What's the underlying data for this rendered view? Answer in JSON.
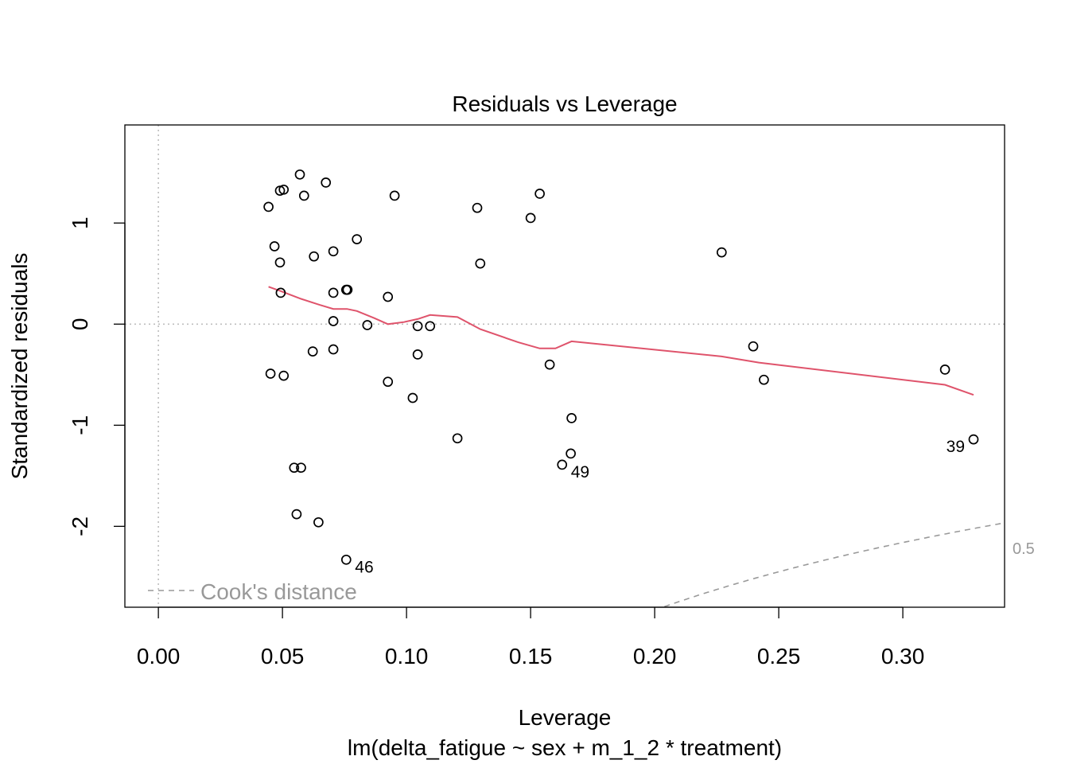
{
  "chart_data": {
    "type": "scatter",
    "title": "Residuals vs Leverage",
    "xlabel": "Leverage",
    "ylabel": "Standardized residuals",
    "subtitle": "lm(delta_fatigue ~ sex + m_1_2 * treatment)",
    "xlim": [
      -0.0135,
      0.341
    ],
    "ylim": [
      -2.8,
      1.97
    ],
    "x_ticks": [
      0.0,
      0.05,
      0.1,
      0.15,
      0.2,
      0.25,
      0.3
    ],
    "x_tick_labels": [
      "0.00",
      "0.05",
      "0.10",
      "0.15",
      "0.20",
      "0.25",
      "0.30"
    ],
    "y_ticks": [
      -2,
      -1,
      0,
      1
    ],
    "y_tick_labels": [
      "-2",
      "-1",
      "0",
      "1"
    ],
    "grid": false,
    "reference_lines": {
      "x": 0,
      "y": 0
    },
    "colors": {
      "points": "#000000",
      "smooth": "#DF536B",
      "reference": "#BEBEBE",
      "cooks": "#999999"
    },
    "points": [
      [
        0.0444,
        1.16
      ],
      [
        0.0468,
        0.77
      ],
      [
        0.049,
        1.32
      ],
      [
        0.0505,
        1.33
      ],
      [
        0.057,
        1.48
      ],
      [
        0.0587,
        1.27
      ],
      [
        0.0675,
        1.4
      ],
      [
        0.049,
        0.61
      ],
      [
        0.0627,
        0.67
      ],
      [
        0.0705,
        0.72
      ],
      [
        0.08,
        0.84
      ],
      [
        0.0952,
        1.27
      ],
      [
        0.1285,
        1.15
      ],
      [
        0.1297,
        0.6
      ],
      [
        0.15,
        1.05
      ],
      [
        0.1537,
        1.29
      ],
      [
        0.0493,
        0.31
      ],
      [
        0.0705,
        0.31
      ],
      [
        0.0757,
        0.34
      ],
      [
        0.0762,
        0.34
      ],
      [
        0.0925,
        0.27
      ],
      [
        0.0705,
        0.03
      ],
      [
        0.0842,
        -0.01
      ],
      [
        0.1045,
        -0.02
      ],
      [
        0.1095,
        -0.02
      ],
      [
        0.0622,
        -0.27
      ],
      [
        0.0705,
        -0.25
      ],
      [
        0.1045,
        -0.3
      ],
      [
        0.0452,
        -0.49
      ],
      [
        0.0505,
        -0.51
      ],
      [
        0.0925,
        -0.57
      ],
      [
        0.1025,
        -0.73
      ],
      [
        0.1205,
        -1.13
      ],
      [
        0.1577,
        -0.4
      ],
      [
        0.1665,
        -0.93
      ],
      [
        0.1662,
        -1.28
      ],
      [
        0.1627,
        -1.39
      ],
      [
        0.0547,
        -1.42
      ],
      [
        0.0575,
        -1.42
      ],
      [
        0.0557,
        -1.88
      ],
      [
        0.0645,
        -1.96
      ],
      [
        0.0757,
        -2.33
      ],
      [
        0.227,
        0.71
      ],
      [
        0.2397,
        -0.22
      ],
      [
        0.244,
        -0.55
      ],
      [
        0.317,
        -0.45
      ],
      [
        0.3285,
        -1.14
      ]
    ],
    "point_labels": [
      {
        "x": 0.0757,
        "y": -2.33,
        "label": "46",
        "side": "right"
      },
      {
        "x": 0.1627,
        "y": -1.39,
        "label": "49",
        "side": "right"
      },
      {
        "x": 0.3285,
        "y": -1.14,
        "label": "39",
        "side": "left"
      }
    ],
    "smooth_line": {
      "x": [
        0.0444,
        0.049,
        0.0575,
        0.065,
        0.0705,
        0.076,
        0.08,
        0.087,
        0.0925,
        0.099,
        0.1045,
        0.1095,
        0.1205,
        0.1297,
        0.145,
        0.1537,
        0.16,
        0.1665,
        0.227,
        0.242,
        0.317,
        0.3285
      ],
      "y": [
        0.37,
        0.33,
        0.25,
        0.19,
        0.15,
        0.15,
        0.13,
        0.06,
        0.0,
        0.02,
        0.05,
        0.09,
        0.07,
        -0.05,
        -0.18,
        -0.24,
        -0.24,
        -0.17,
        -0.32,
        -0.38,
        -0.6,
        -0.7
      ]
    },
    "cooks_distance": {
      "legend_label": "Cook's distance",
      "contour_label": "0.5",
      "level": 0.5,
      "n_params": 4
    }
  }
}
